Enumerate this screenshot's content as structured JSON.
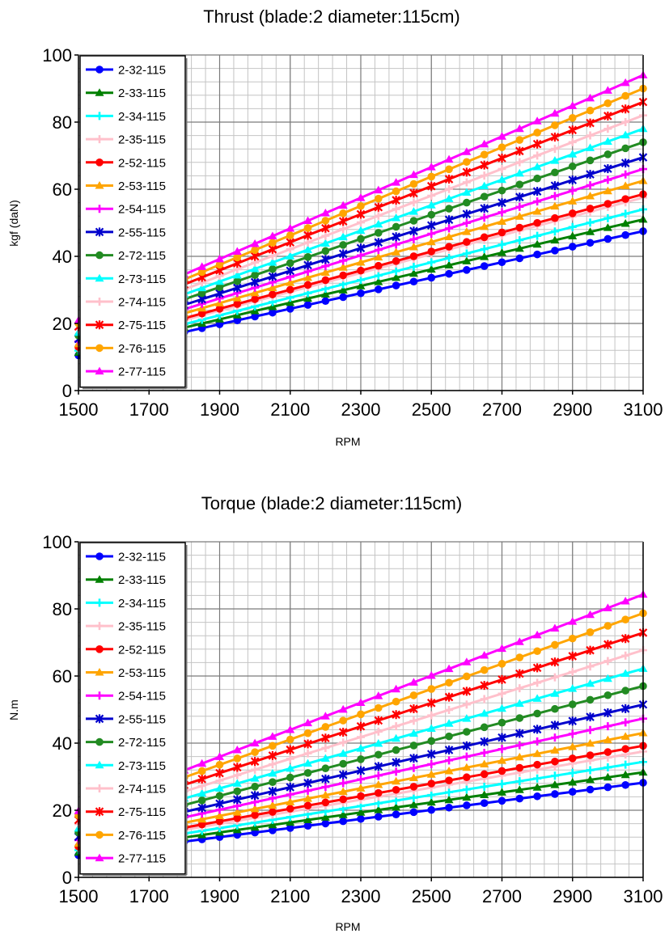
{
  "charts": [
    {
      "id": "thrust",
      "title": "Thrust (blade:2 diameter:115cm)",
      "xlabel": "RPM",
      "ylabel": "kgf (daN)",
      "xticks": [
        "1500",
        "1700",
        "1900",
        "2100",
        "2300",
        "2500",
        "2700",
        "2900",
        "3100"
      ],
      "yticks": [
        "0",
        "20",
        "40",
        "60",
        "80",
        "100"
      ]
    },
    {
      "id": "torque",
      "title": "Torque (blade:2 diameter:115cm)",
      "xlabel": "RPM",
      "ylabel": "N.m",
      "xticks": [
        "1500",
        "1700",
        "1900",
        "2100",
        "2300",
        "2500",
        "2700",
        "2900",
        "3100"
      ],
      "yticks": [
        "0",
        "20",
        "40",
        "60",
        "80",
        "100"
      ]
    }
  ],
  "chart_data": [
    {
      "type": "line",
      "title": "Thrust (blade:2 diameter:115cm)",
      "xlabel": "RPM",
      "ylabel": "kgf (daN)",
      "xlim": [
        1500,
        3100
      ],
      "ylim": [
        0,
        100
      ],
      "grid": true,
      "legend": "top-left",
      "x_start": 1500,
      "x_step": 50,
      "series": [
        {
          "name": "2-32-115",
          "color": "#0000ff",
          "marker": "circle",
          "y_start": 10.5,
          "y_end": 47.5
        },
        {
          "name": "2-33-115",
          "color": "#008000",
          "marker": "triangle",
          "y_start": 11.3,
          "y_end": 51.0
        },
        {
          "name": "2-34-115",
          "color": "#00ffff",
          "marker": "plus",
          "y_start": 11.9,
          "y_end": 54.0
        },
        {
          "name": "2-35-115",
          "color": "#ffc0cb",
          "marker": "plus",
          "y_start": 12.6,
          "y_end": 57.5
        },
        {
          "name": "2-52-115",
          "color": "#ff0000",
          "marker": "circle",
          "y_start": 13.0,
          "y_end": 58.5
        },
        {
          "name": "2-53-115",
          "color": "#ffa500",
          "marker": "triangle",
          "y_start": 13.9,
          "y_end": 62.5
        },
        {
          "name": "2-54-115",
          "color": "#ff00ff",
          "marker": "plus",
          "y_start": 14.6,
          "y_end": 66.0
        },
        {
          "name": "2-55-115",
          "color": "#0000cd",
          "marker": "star",
          "y_start": 15.4,
          "y_end": 69.5
        },
        {
          "name": "2-72-115",
          "color": "#228b22",
          "marker": "circle",
          "y_start": 16.4,
          "y_end": 74.0
        },
        {
          "name": "2-73-115",
          "color": "#00ffff",
          "marker": "triangle",
          "y_start": 17.3,
          "y_end": 78.0
        },
        {
          "name": "2-74-115",
          "color": "#ffc0cb",
          "marker": "plus",
          "y_start": 18.2,
          "y_end": 82.0
        },
        {
          "name": "2-75-115",
          "color": "#ff0000",
          "marker": "star",
          "y_start": 19.1,
          "y_end": 86.0
        },
        {
          "name": "2-76-115",
          "color": "#ffa500",
          "marker": "circle",
          "y_start": 20.0,
          "y_end": 90.0
        },
        {
          "name": "2-77-115",
          "color": "#ff00ff",
          "marker": "triangle",
          "y_start": 20.9,
          "y_end": 94.0
        }
      ]
    },
    {
      "type": "line",
      "title": "Torque (blade:2 diameter:115cm)",
      "xlabel": "RPM",
      "ylabel": "N.m",
      "xlim": [
        1500,
        3100
      ],
      "ylim": [
        0,
        100
      ],
      "grid": true,
      "legend": "top-left",
      "x_start": 1500,
      "x_step": 50,
      "series": [
        {
          "name": "2-32-115",
          "color": "#0000ff",
          "marker": "circle",
          "y_start": 6.6,
          "y_end": 28.2
        },
        {
          "name": "2-33-115",
          "color": "#008000",
          "marker": "triangle",
          "y_start": 7.4,
          "y_end": 31.3
        },
        {
          "name": "2-34-115",
          "color": "#00ffff",
          "marker": "plus",
          "y_start": 8.1,
          "y_end": 34.4
        },
        {
          "name": "2-35-115",
          "color": "#ffc0cb",
          "marker": "plus",
          "y_start": 8.8,
          "y_end": 37.5
        },
        {
          "name": "2-52-115",
          "color": "#ff0000",
          "marker": "circle",
          "y_start": 9.2,
          "y_end": 39.2
        },
        {
          "name": "2-53-115",
          "color": "#ffa500",
          "marker": "triangle",
          "y_start": 10.1,
          "y_end": 43.0
        },
        {
          "name": "2-54-115",
          "color": "#ff00ff",
          "marker": "plus",
          "y_start": 11.1,
          "y_end": 47.3
        },
        {
          "name": "2-55-115",
          "color": "#0000cd",
          "marker": "star",
          "y_start": 12.1,
          "y_end": 51.5
        },
        {
          "name": "2-72-115",
          "color": "#228b22",
          "marker": "circle",
          "y_start": 13.4,
          "y_end": 57.0
        },
        {
          "name": "2-73-115",
          "color": "#00ffff",
          "marker": "triangle",
          "y_start": 14.6,
          "y_end": 62.2
        },
        {
          "name": "2-74-115",
          "color": "#ffc0cb",
          "marker": "plus",
          "y_start": 15.9,
          "y_end": 67.7
        },
        {
          "name": "2-75-115",
          "color": "#ff0000",
          "marker": "star",
          "y_start": 17.1,
          "y_end": 72.9
        },
        {
          "name": "2-76-115",
          "color": "#ffa500",
          "marker": "circle",
          "y_start": 18.5,
          "y_end": 78.7
        },
        {
          "name": "2-77-115",
          "color": "#ff00ff",
          "marker": "triangle",
          "y_start": 19.8,
          "y_end": 84.3
        }
      ]
    }
  ]
}
